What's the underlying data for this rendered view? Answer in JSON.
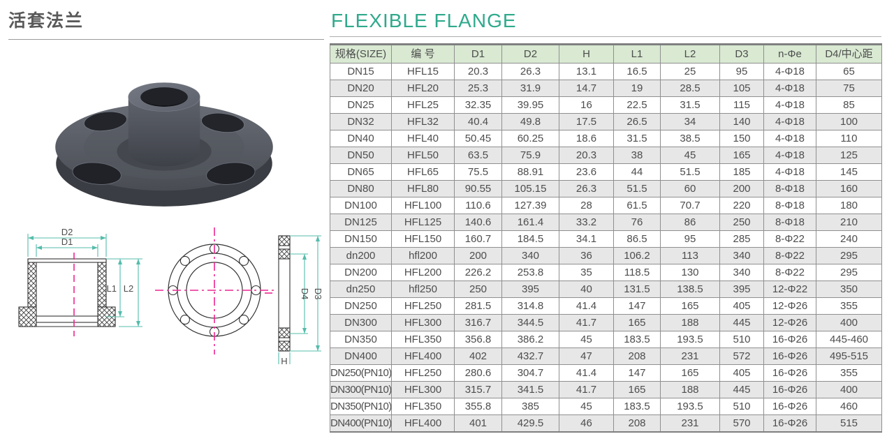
{
  "page": {
    "title_cn": "活套法兰",
    "title_en": "FLEXIBLE FLANGE"
  },
  "colors": {
    "accent_teal": "#2fa98c",
    "table_header_bg": "#d9e9d2",
    "table_row_alt": "#e7e7e7",
    "dimension_line": "#54bcab",
    "centerline_magenta": "#ec268f"
  },
  "drawings": {
    "labels": {
      "d2": "D2",
      "d1": "D1",
      "l1": "L1",
      "l2": "L2",
      "d4": "D4",
      "d3": "D3",
      "h": "H"
    }
  },
  "table": {
    "headers": [
      "规格(SIZE)",
      "编 号",
      "D1",
      "D2",
      "H",
      "L1",
      "L2",
      "D3",
      "n-Φe",
      "D4/中心距"
    ],
    "rows": [
      [
        "DN15",
        "HFL15",
        "20.3",
        "26.3",
        "13.1",
        "16.5",
        "25",
        "95",
        "4-Φ18",
        "65"
      ],
      [
        "DN20",
        "HFL20",
        "25.3",
        "31.9",
        "14.7",
        "19",
        "28.5",
        "105",
        "4-Φ18",
        "75"
      ],
      [
        "DN25",
        "HFL25",
        "32.35",
        "39.95",
        "16",
        "22.5",
        "31.5",
        "115",
        "4-Φ18",
        "85"
      ],
      [
        "DN32",
        "HFL32",
        "40.4",
        "49.8",
        "17.5",
        "26.5",
        "34",
        "140",
        "4-Φ18",
        "100"
      ],
      [
        "DN40",
        "HFL40",
        "50.45",
        "60.25",
        "18.6",
        "31.5",
        "38.5",
        "150",
        "4-Φ18",
        "110"
      ],
      [
        "DN50",
        "HFL50",
        "63.5",
        "75.9",
        "20.3",
        "38",
        "45",
        "165",
        "4-Φ18",
        "125"
      ],
      [
        "DN65",
        "HFL65",
        "75.5",
        "88.91",
        "23.6",
        "44",
        "51.5",
        "185",
        "4-Φ18",
        "145"
      ],
      [
        "DN80",
        "HFL80",
        "90.55",
        "105.15",
        "26.3",
        "51.5",
        "60",
        "200",
        "8-Φ18",
        "160"
      ],
      [
        "DN100",
        "HFL100",
        "110.6",
        "127.39",
        "28",
        "61.5",
        "70.7",
        "220",
        "8-Φ18",
        "180"
      ],
      [
        "DN125",
        "HFL125",
        "140.6",
        "161.4",
        "33.2",
        "76",
        "86",
        "250",
        "8-Φ18",
        "210"
      ],
      [
        "DN150",
        "HFL150",
        "160.7",
        "184.5",
        "34.1",
        "86.5",
        "95",
        "285",
        "8-Φ22",
        "240"
      ],
      [
        "dn200",
        "hfl200",
        "200",
        "340",
        "36",
        "106.2",
        "113",
        "340",
        "8-Φ22",
        "295"
      ],
      [
        "DN200",
        "HFL200",
        "226.2",
        "253.8",
        "35",
        "118.5",
        "130",
        "340",
        "8-Φ22",
        "295"
      ],
      [
        "dn250",
        "hfl250",
        "250",
        "395",
        "40",
        "131.5",
        "138.5",
        "395",
        "12-Φ22",
        "350"
      ],
      [
        "DN250",
        "HFL250",
        "281.5",
        "314.8",
        "41.4",
        "147",
        "165",
        "405",
        "12-Φ26",
        "355"
      ],
      [
        "DN300",
        "HFL300",
        "316.7",
        "344.5",
        "41.7",
        "165",
        "188",
        "445",
        "12-Φ26",
        "400"
      ],
      [
        "DN350",
        "HFL350",
        "356.8",
        "386.2",
        "45",
        "183.5",
        "193.5",
        "510",
        "16-Φ26",
        "445-460"
      ],
      [
        "DN400",
        "HFL400",
        "402",
        "432.7",
        "47",
        "208",
        "231",
        "572",
        "16-Φ26",
        "495-515"
      ],
      [
        "DN250(PN10)",
        "HFL250",
        "280.6",
        "304.7",
        "41.4",
        "147",
        "165",
        "405",
        "16-Φ26",
        "355"
      ],
      [
        "DN300(PN10)",
        "HFL300",
        "315.7",
        "341.5",
        "41.7",
        "165",
        "188",
        "445",
        "16-Φ26",
        "400"
      ],
      [
        "DN350(PN10)",
        "HFL350",
        "355.8",
        "385",
        "45",
        "183.5",
        "193.5",
        "510",
        "16-Φ26",
        "460"
      ],
      [
        "DN400(PN10)",
        "HFL400",
        "401",
        "429.5",
        "46",
        "208",
        "231",
        "570",
        "16-Φ26",
        "515"
      ]
    ]
  }
}
